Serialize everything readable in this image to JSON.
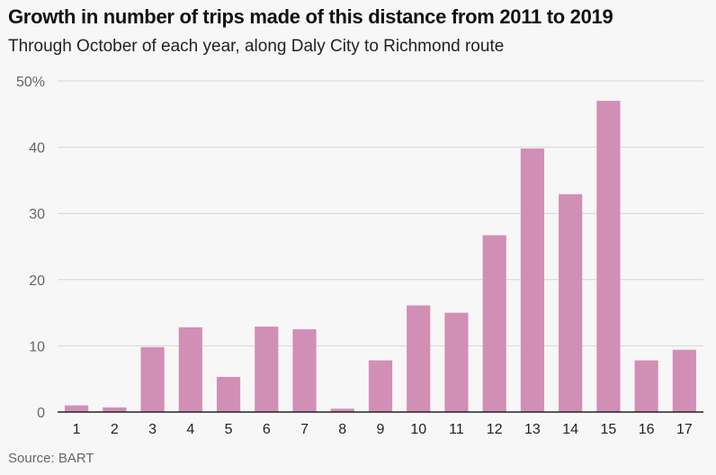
{
  "header": {
    "title": "Growth in number of trips made of this distance from 2011 to 2019",
    "subtitle": "Through October of each year, along Daly City to Richmond route"
  },
  "footer": {
    "source": "Source: BART"
  },
  "chart_data": {
    "type": "bar",
    "title": "Growth in number of trips made of this distance from 2011 to 2019",
    "subtitle": "Through October of each year, along Daly City to Richmond route",
    "xlabel": "",
    "ylabel": "",
    "categories": [
      "1",
      "2",
      "3",
      "4",
      "5",
      "6",
      "7",
      "8",
      "9",
      "10",
      "11",
      "12",
      "13",
      "14",
      "15",
      "16",
      "17"
    ],
    "values": [
      1.0,
      0.7,
      9.8,
      12.8,
      5.3,
      12.9,
      12.5,
      0.5,
      7.8,
      16.1,
      15.0,
      26.7,
      39.8,
      32.9,
      47.0,
      7.8,
      9.4
    ],
    "ylim": [
      0,
      50
    ],
    "yticks": [
      0,
      10,
      20,
      30,
      40,
      50
    ],
    "ytick_labels": [
      "0",
      "10",
      "20",
      "30",
      "40",
      "50%"
    ],
    "grid": true,
    "bar_color": "#d18fb6"
  }
}
